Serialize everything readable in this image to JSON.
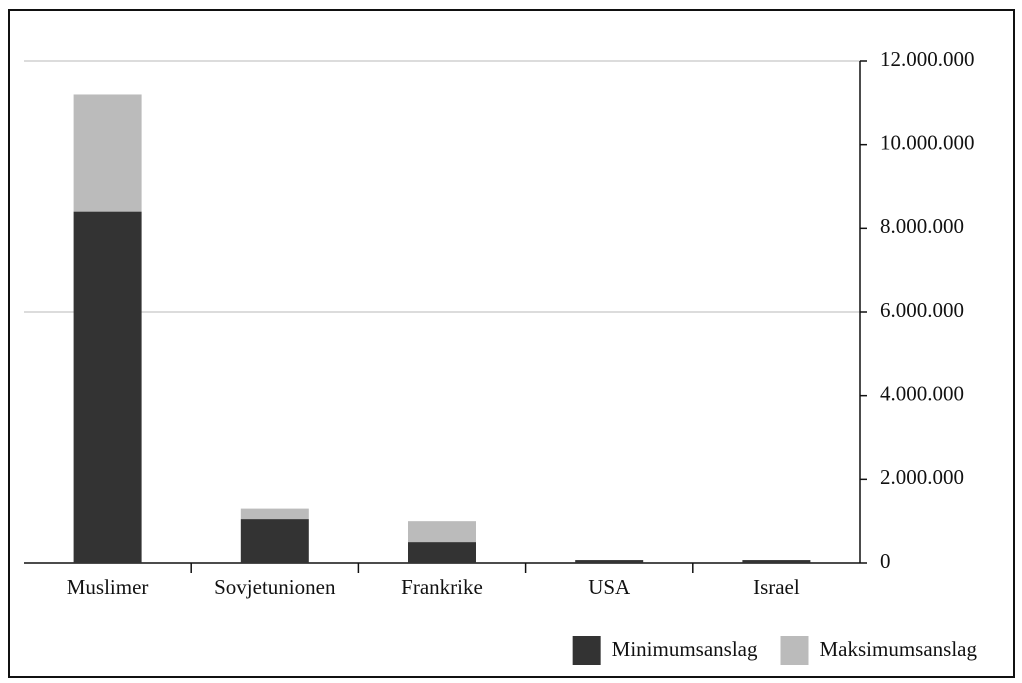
{
  "chart_data": {
    "type": "stacked_bar",
    "categories": [
      "Muslimer",
      "Sovjetunionen",
      "Frankrike",
      "USA",
      "Israel"
    ],
    "series": [
      {
        "name": "Minimumsanslag",
        "color": "#333333",
        "values": [
          8400000,
          1050000,
          500000,
          70000,
          70000
        ]
      },
      {
        "name": "Maksimumsanslag",
        "color": "#bbbbbb",
        "values": [
          2800000,
          250000,
          500000,
          0,
          0
        ]
      }
    ],
    "ylim": [
      0,
      12000000
    ],
    "yticks": [
      0,
      {
        "value": 2000000,
        "label": "2.000.000"
      },
      {
        "value": 4000000,
        "label": "4.000.000"
      },
      {
        "value": 6000000,
        "label": "6.000.000"
      },
      {
        "value": 8000000,
        "label": "8.000.000"
      },
      {
        "value": 10000000,
        "label": "10.000.000"
      },
      {
        "value": 12000000,
        "label": "12.000.000"
      }
    ],
    "grid_ticks": [
      6000000,
      12000000
    ],
    "y_axis_side": "right",
    "legend": "bottom-right"
  }
}
